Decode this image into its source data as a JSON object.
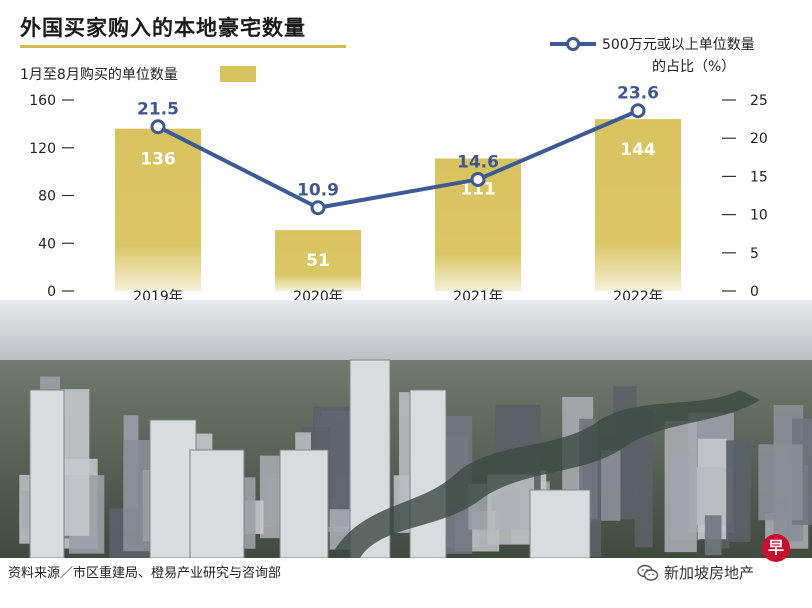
{
  "header": {
    "title": "外国买家购入的本地豪宅数量"
  },
  "footer": {
    "source": "资料来源／市区重建局、橙易产业研究与咨询部",
    "watermark": "新加坡房地产"
  },
  "colors": {
    "bar": "#d9c35e",
    "line": "#3d5a96",
    "text": "#1a1a1a"
  },
  "icons": {
    "wechat": "wechat-icon",
    "badge": "zaobao-badge"
  },
  "badge_text": "早",
  "chart_data": {
    "type": "bar",
    "categories": [
      "2019年",
      "2020年",
      "2021年",
      "2022年"
    ],
    "series": [
      {
        "name": "1月至8月购买的单位数量",
        "type": "bar",
        "axis": "left",
        "values": [
          136,
          51,
          111,
          144
        ]
      },
      {
        "name_line1": "500万元或以上单位数量",
        "name_line2": "的占比（%）",
        "type": "line",
        "axis": "right",
        "values": [
          21.5,
          10.9,
          14.6,
          23.6
        ]
      }
    ],
    "left_axis": {
      "ticks": [
        0,
        40,
        80,
        120,
        160
      ],
      "ylim": [
        0,
        160
      ]
    },
    "right_axis": {
      "ticks": [
        0,
        5,
        10,
        15,
        20,
        25
      ],
      "ylim": [
        0,
        25
      ]
    },
    "legend_position": "top"
  }
}
